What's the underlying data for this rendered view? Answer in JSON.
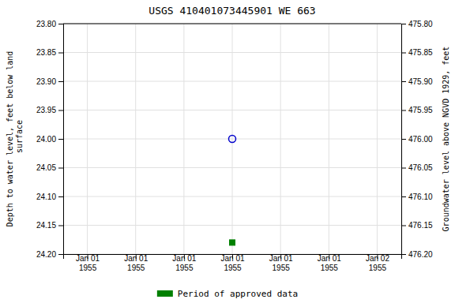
{
  "chart_data": {
    "type": "scatter",
    "title": "USGS 410401073445901 WE 663",
    "y_label": "Depth to water level, feet below land\n surface",
    "y2_label": "Groundwater level above NGVD 1929, feet",
    "categories": [
      "Jan 01\n1955",
      "Jan 01\n1955",
      "Jan 01\n1955",
      "Jan 01\n1955",
      "Jan 01\n1955",
      "Jan 01\n1955",
      "Jan 02\n1955"
    ],
    "series": [
      {
        "color": "#0000cc",
        "marker": "open_circle",
        "values": [
          null,
          null,
          null,
          24.0,
          null,
          null,
          null
        ]
      },
      {
        "name": "Period of approved data",
        "color": "#008000",
        "marker": "square",
        "values": [
          null,
          null,
          null,
          24.18,
          null,
          null,
          null
        ]
      }
    ],
    "ylim": [
      24.2,
      23.8
    ],
    "yticks": [
      {
        "value": 23.8,
        "label": "23.80"
      },
      23.85,
      {
        "value": 23.9,
        "label": "23.90"
      },
      23.95,
      {
        "value": 24.0,
        "label": "24.00"
      },
      24.05,
      {
        "value": 24.1,
        "label": "24.10"
      },
      24.15,
      {
        "value": 24.2,
        "label": "24.20"
      }
    ],
    "y2lim": [
      476.2,
      475.8
    ],
    "y2ticks": [
      {
        "value": 476.2,
        "label": "476.20"
      },
      476.15,
      {
        "value": 476.1,
        "label": "476.10"
      },
      476.05,
      {
        "value": 476.0,
        "label": "476.00"
      },
      475.95,
      {
        "value": 475.9,
        "label": "475.90"
      },
      475.85,
      {
        "value": 475.8,
        "label": "475.80"
      }
    ],
    "grid": true,
    "legend": "bottom"
  }
}
